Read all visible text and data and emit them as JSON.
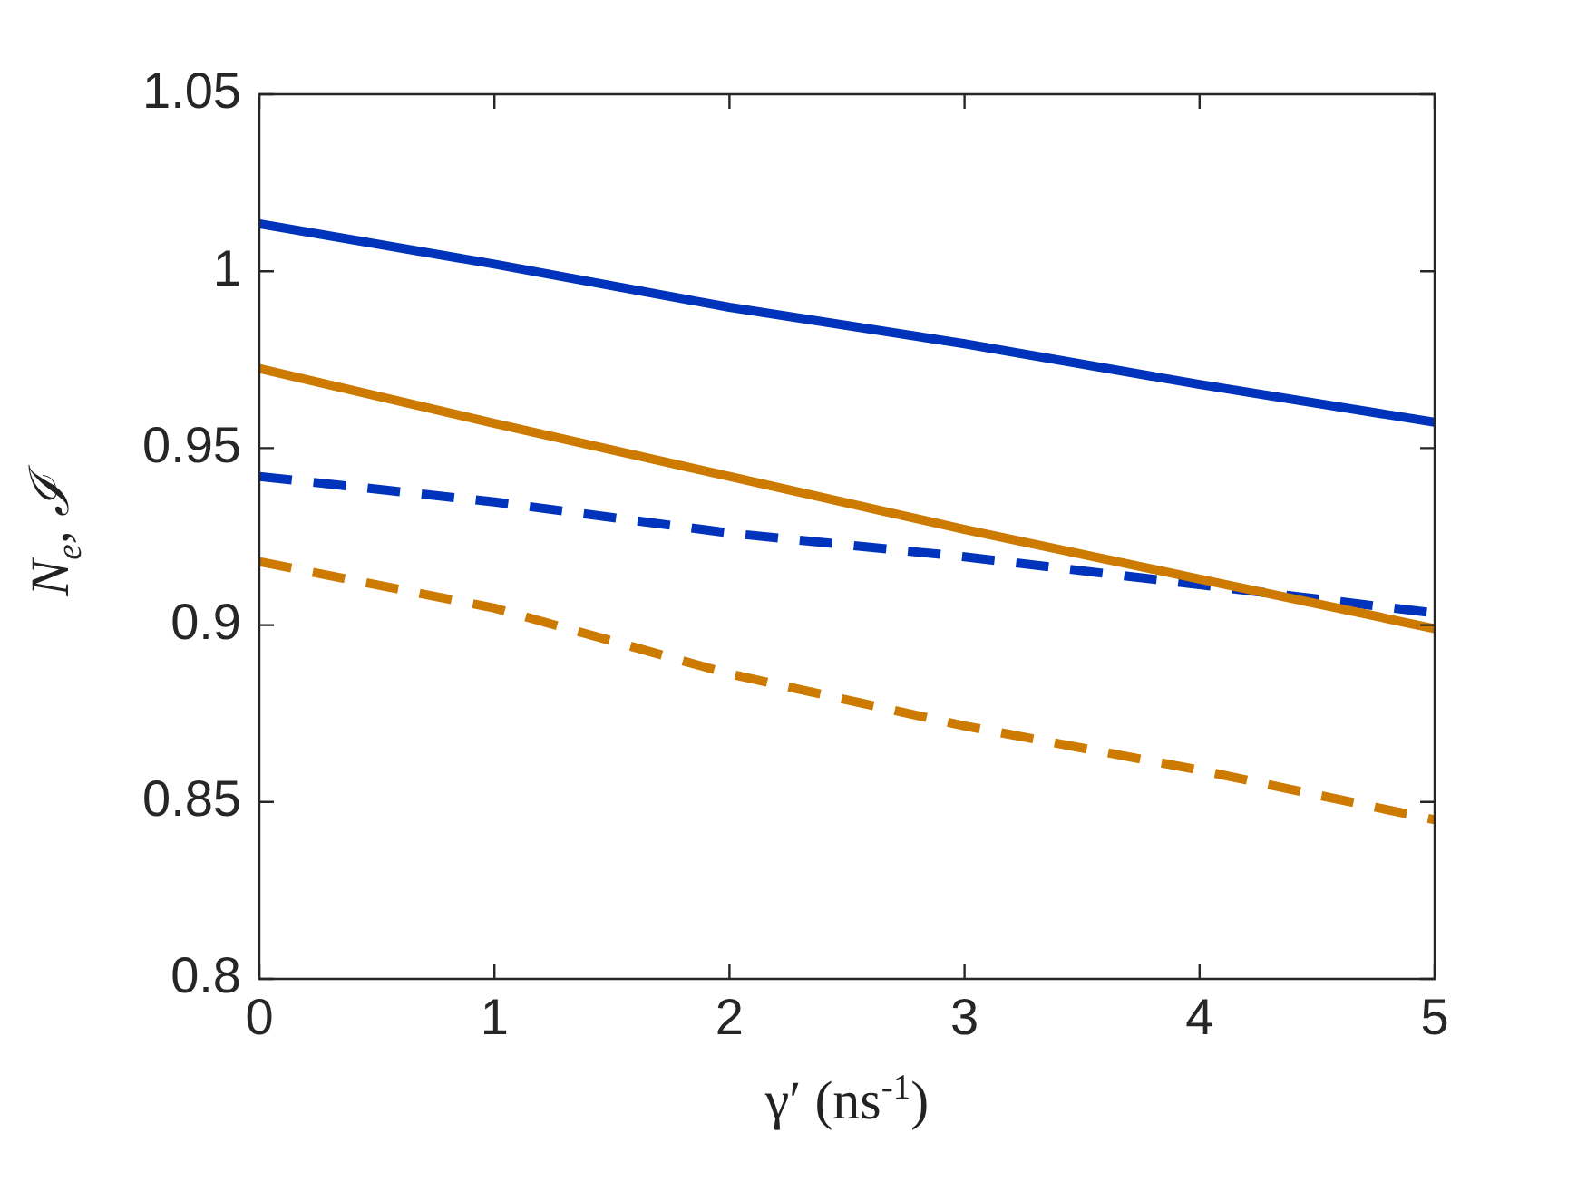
{
  "chart_data": {
    "type": "line",
    "xlabel": "γ′ (ns$^{-1}$)",
    "ylabel": "N$_{e}$, ℐ",
    "x": [
      0,
      1,
      2,
      3,
      4,
      5
    ],
    "series": [
      {
        "color": "#0033bb",
        "line_style": "solid",
        "values": [
          1.0134,
          1.002,
          0.9898,
          0.9795,
          0.968,
          0.9573
        ]
      },
      {
        "color": "#cc7a00",
        "line_style": "solid",
        "values": [
          0.9725,
          0.957,
          0.942,
          0.927,
          0.913,
          0.899
        ]
      },
      {
        "color": "#0033bb",
        "line_style": "dashed",
        "values": [
          0.942,
          0.9348,
          0.926,
          0.9193,
          0.9114,
          0.9034
        ]
      },
      {
        "color": "#cc7a00",
        "line_style": "dashed",
        "values": [
          0.9179,
          0.9048,
          0.8862,
          0.8715,
          0.859,
          0.845
        ]
      }
    ],
    "xlim": [
      0,
      5
    ],
    "xticks": [
      0,
      1,
      2,
      3,
      4,
      5
    ],
    "ylim": [
      0.8,
      1.05
    ],
    "yticks": [
      0.8,
      0.85,
      0.9,
      0.95,
      1,
      1.05
    ],
    "grid": false,
    "legend": false,
    "marker": "none"
  }
}
